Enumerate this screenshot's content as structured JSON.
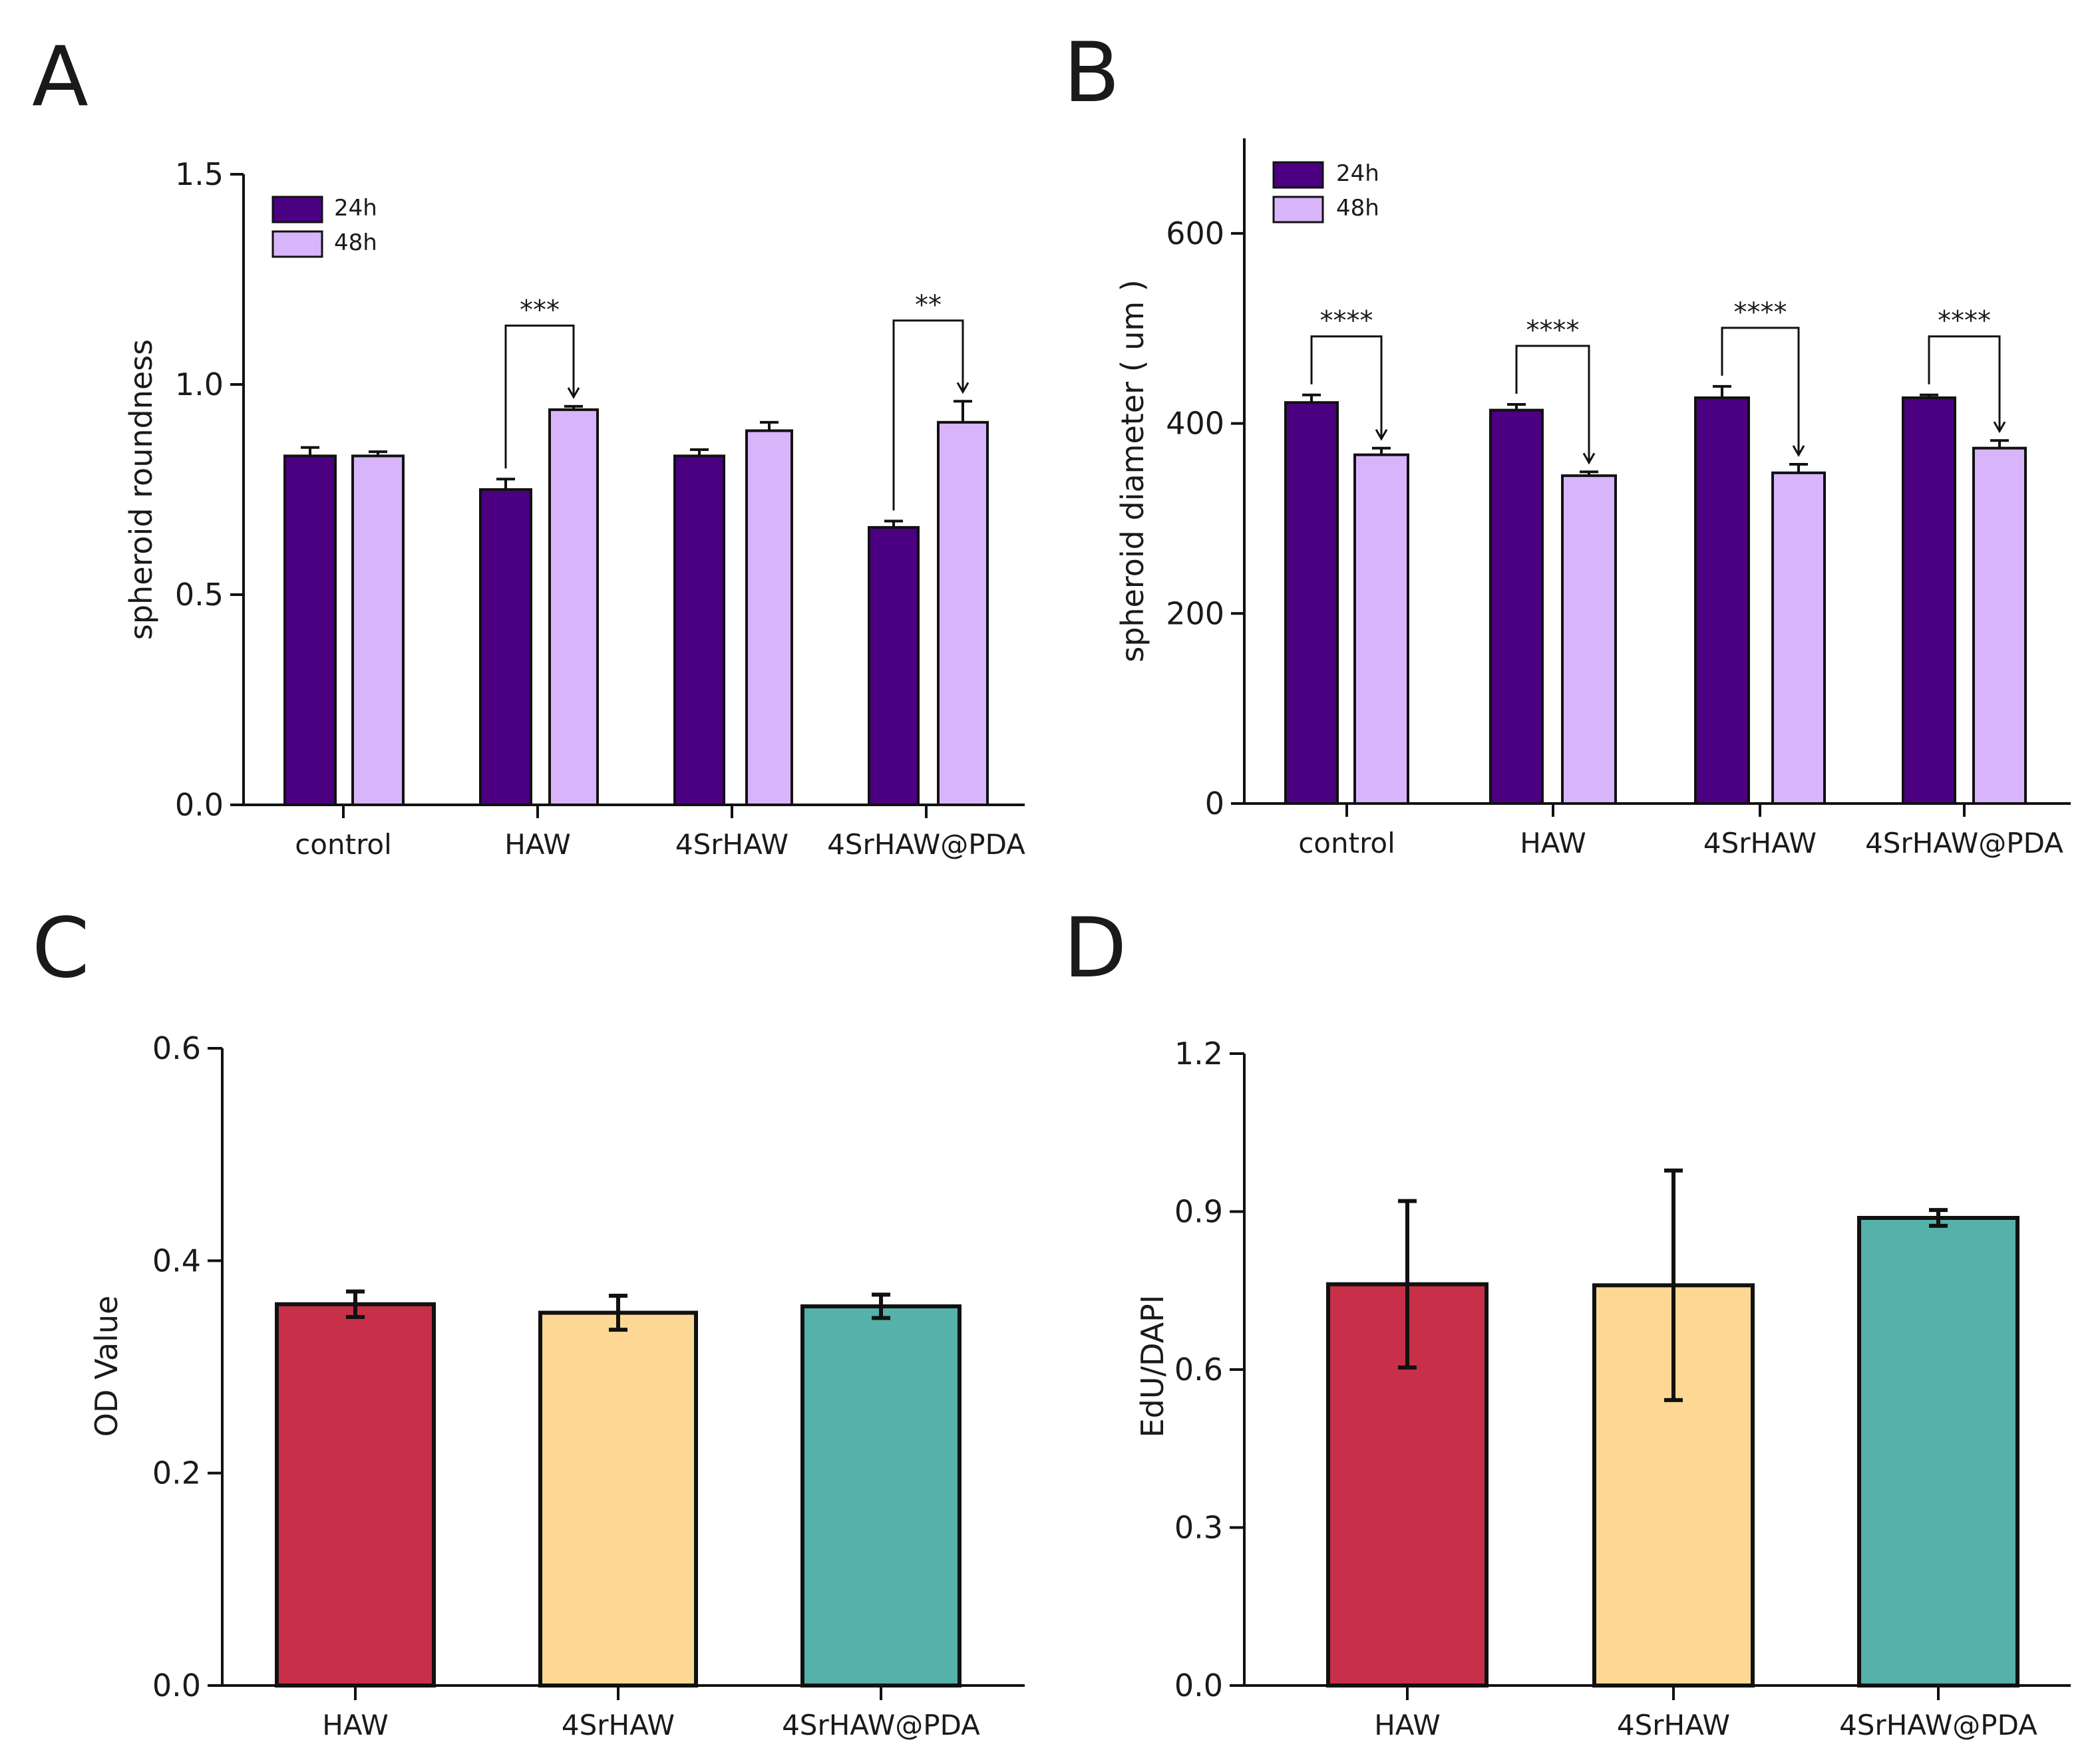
{
  "panels": [
    "A",
    "B",
    "C",
    "D"
  ],
  "chart_data": [
    {
      "panel": "A",
      "type": "bar",
      "ylabel": "spheroid roundness",
      "ylim": [
        0,
        1.5
      ],
      "yticks": [
        0.0,
        0.5,
        1.0,
        1.5
      ],
      "ytick_labels": [
        "0.0",
        "0.5",
        "1.0",
        "1.5"
      ],
      "categories": [
        "control",
        "HAW",
        "4SrHAW",
        "4SrHAW@PDA"
      ],
      "legend": {
        "position": "top-left"
      },
      "series": [
        {
          "name": "24h",
          "color": "#4b0082",
          "values": [
            0.83,
            0.75,
            0.83,
            0.66
          ],
          "errors": [
            0.02,
            0.025,
            0.015,
            0.015
          ]
        },
        {
          "name": "48h",
          "color": "#d8b4fa",
          "values": [
            0.83,
            0.94,
            0.89,
            0.91
          ],
          "errors": [
            0.01,
            0.008,
            0.02,
            0.05
          ]
        }
      ],
      "significance": [
        {
          "category_index": 1,
          "label": "***"
        },
        {
          "category_index": 3,
          "label": "**"
        }
      ]
    },
    {
      "panel": "B",
      "type": "bar",
      "ylabel": "spheroid diameter ( um )",
      "ylim": [
        0,
        700
      ],
      "yticks": [
        0,
        200,
        400,
        600
      ],
      "ytick_labels": [
        "0",
        "200",
        "400",
        "600"
      ],
      "categories": [
        "control",
        "HAW",
        "4SrHAW",
        "4SrHAW@PDA"
      ],
      "legend": {
        "position": "top-left"
      },
      "series": [
        {
          "name": "24h",
          "color": "#4b0082",
          "values": [
            422,
            414,
            427,
            427
          ],
          "errors": [
            8,
            6,
            12,
            3
          ]
        },
        {
          "name": "48h",
          "color": "#d8b4fa",
          "values": [
            367,
            345,
            348,
            374
          ],
          "errors": [
            7,
            4,
            9,
            8
          ]
        }
      ],
      "significance": [
        {
          "category_index": 0,
          "label": "****"
        },
        {
          "category_index": 1,
          "label": "****"
        },
        {
          "category_index": 2,
          "label": "****"
        },
        {
          "category_index": 3,
          "label": "****"
        }
      ]
    },
    {
      "panel": "C",
      "type": "bar",
      "ylabel": "OD Value",
      "ylim": [
        0,
        0.6
      ],
      "yticks": [
        0.0,
        0.2,
        0.4,
        0.6
      ],
      "ytick_labels": [
        "0.0",
        "0.2",
        "0.4",
        "0.6"
      ],
      "categories": [
        "HAW",
        "4SrHAW",
        "4SrHAW@PDA"
      ],
      "colors": [
        "#c8304a",
        "#fcd894",
        "#56b1aa"
      ],
      "values": [
        0.359,
        0.351,
        0.357
      ],
      "errors": [
        0.012,
        0.016,
        0.011
      ]
    },
    {
      "panel": "D",
      "type": "bar",
      "ylabel": "EdU/DAPI",
      "ylim": [
        0,
        1.2
      ],
      "yticks": [
        0.0,
        0.3,
        0.6,
        0.9,
        1.2
      ],
      "ytick_labels": [
        "0.0",
        "0.3",
        "0.6",
        "0.9",
        "1.2"
      ],
      "categories": [
        "HAW",
        "4SrHAW",
        "4SrHAW@PDA"
      ],
      "colors": [
        "#c8304a",
        "#fcd894",
        "#56b1aa"
      ],
      "values": [
        0.762,
        0.76,
        0.888
      ],
      "errors": [
        0.158,
        0.218,
        0.015
      ]
    }
  ]
}
